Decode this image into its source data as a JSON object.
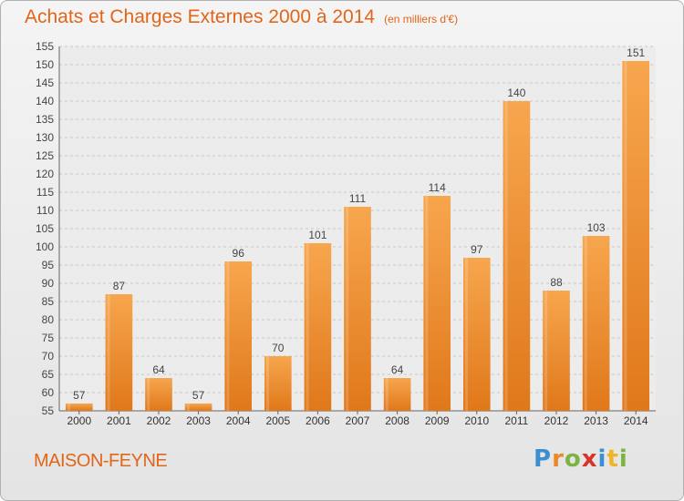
{
  "chart_data": {
    "type": "bar",
    "title": "Achats et Charges Externes 2000 à 2014",
    "subtitle": "(en milliers d'€)",
    "categories": [
      "2000",
      "2001",
      "2002",
      "2003",
      "2004",
      "2005",
      "2006",
      "2007",
      "2008",
      "2009",
      "2010",
      "2011",
      "2012",
      "2013",
      "2014"
    ],
    "values": [
      57,
      87,
      64,
      57,
      96,
      70,
      101,
      111,
      64,
      114,
      97,
      140,
      88,
      103,
      151
    ],
    "ylim": [
      55,
      155
    ],
    "yticks": [
      55,
      60,
      65,
      70,
      75,
      80,
      85,
      90,
      95,
      100,
      105,
      110,
      115,
      120,
      125,
      130,
      135,
      140,
      145,
      150,
      155
    ],
    "grid": true,
    "bar_color": "#f0963a",
    "label_color": "#444444"
  },
  "footer": {
    "town": "MAISON-FEYNE",
    "logo": "Proxiti"
  }
}
